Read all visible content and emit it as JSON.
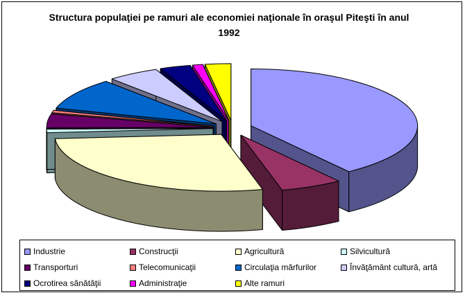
{
  "chart_data": {
    "type": "pie",
    "three_d": true,
    "exploded": true,
    "title": "Structura populaţiei pe ramuri ale economiei naţionale în oraşul Piteşti în anul 1992",
    "categories": [
      "Industrie",
      "Construcţii",
      "Agricultură",
      "Silvicultură",
      "Transporturi",
      "Telecomunicaţii",
      "Circulaţia mărfurilor",
      "Învăţământ cultură, artă",
      "Ocrotirea sănătăţii",
      "Administraţie",
      "Alte ramuri"
    ],
    "values": [
      40,
      6,
      27.8,
      1,
      4,
      0.7,
      9,
      5,
      3,
      1,
      2.5
    ],
    "colors": [
      "#9999ff",
      "#993366",
      "#ffffcc",
      "#ccffff",
      "#660066",
      "#ff8080",
      "#0066cc",
      "#ccccff",
      "#000080",
      "#ff00ff",
      "#ffff00"
    ],
    "legend": "bottom"
  }
}
